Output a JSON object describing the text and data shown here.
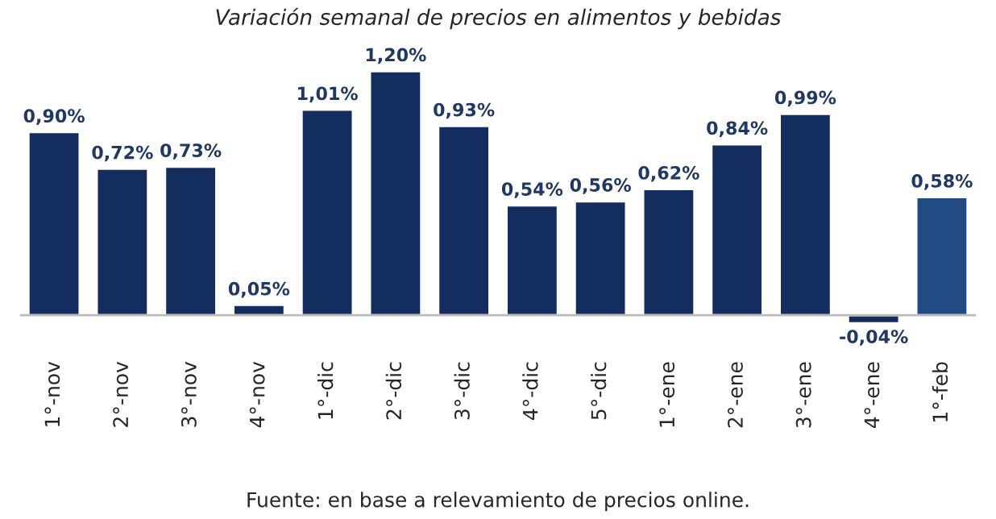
{
  "chart_data": {
    "type": "bar",
    "title": "Variación semanal de precios en alimentos y bebidas",
    "categories": [
      "1°-nov",
      "2°-nov",
      "3°-nov",
      "4°-nov",
      "1°-dic",
      "2°-dic",
      "3°-dic",
      "4°-dic",
      "5°-dic",
      "1°-ene",
      "2°-ene",
      "3°-ene",
      "4°-ene",
      "1°-feb"
    ],
    "values": [
      0.9,
      0.72,
      0.73,
      0.05,
      1.01,
      1.2,
      0.93,
      0.54,
      0.56,
      0.62,
      0.84,
      0.99,
      -0.04,
      0.58
    ],
    "value_labels": [
      "0,90%",
      "0,72%",
      "0,73%",
      "0,05%",
      "1,01%",
      "1,20%",
      "0,93%",
      "0,54%",
      "0,56%",
      "0,62%",
      "0,84%",
      "0,99%",
      "-0,04%",
      "0,58%"
    ],
    "colors": [
      "#132d5e",
      "#132d5e",
      "#132d5e",
      "#132d5e",
      "#132d5e",
      "#132d5e",
      "#132d5e",
      "#132d5e",
      "#132d5e",
      "#132d5e",
      "#132d5e",
      "#132d5e",
      "#132d5e",
      "#214b82"
    ],
    "annotations": [
      "Fuente: en base a relevamiento de precios online."
    ],
    "grid": false,
    "legend": false
  }
}
